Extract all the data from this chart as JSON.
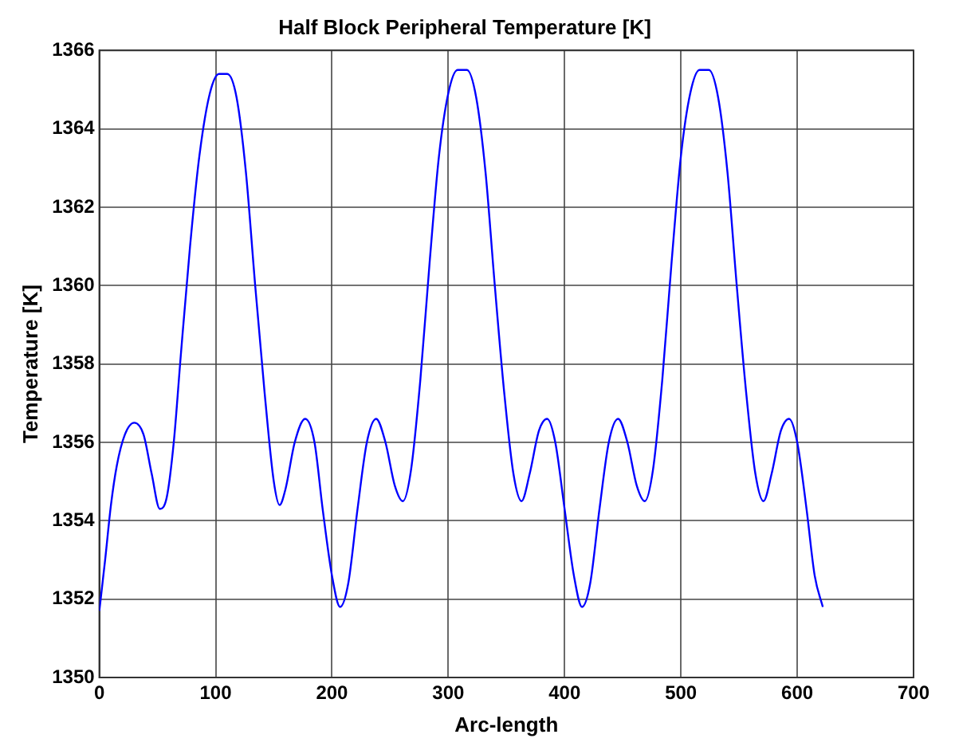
{
  "chart_data": {
    "type": "line",
    "title": "Half Block Peripheral Temperature [K]",
    "xlabel": "Arc-length",
    "ylabel": "Temperature [K]",
    "series": [
      {
        "color": "#0000ff",
        "x": [
          0,
          5,
          10,
          15,
          22,
          30,
          38,
          45,
          52,
          58,
          64,
          70,
          78,
          86,
          95,
          103,
          110,
          118,
          126,
          134,
          142,
          150,
          155,
          160,
          168,
          177,
          185,
          192,
          200,
          207,
          214,
          222,
          230,
          238,
          246,
          254,
          261,
          268,
          276,
          284,
          292,
          300,
          308,
          316,
          324,
          332,
          340,
          348,
          356,
          363,
          370,
          378,
          385,
          392,
          400,
          408,
          415,
          422,
          430,
          438,
          446,
          454,
          462,
          469,
          476,
          484,
          492,
          500,
          508,
          516,
          524,
          532,
          540,
          548,
          556,
          564,
          571,
          578,
          586,
          593,
          600,
          608,
          615,
          622
        ],
        "values": [
          1351.7,
          1353.0,
          1354.4,
          1355.4,
          1356.2,
          1356.5,
          1356.2,
          1355.2,
          1354.3,
          1354.6,
          1356.0,
          1358.2,
          1361.0,
          1363.3,
          1364.9,
          1365.4,
          1365.4,
          1364.8,
          1362.9,
          1360.0,
          1357.3,
          1355.0,
          1354.4,
          1354.8,
          1356.0,
          1356.6,
          1356.0,
          1354.3,
          1352.6,
          1351.8,
          1352.4,
          1354.3,
          1356.0,
          1356.6,
          1356.0,
          1354.9,
          1354.5,
          1355.3,
          1357.6,
          1360.6,
          1363.3,
          1364.9,
          1365.5,
          1365.5,
          1364.8,
          1362.9,
          1360.0,
          1357.3,
          1355.2,
          1354.5,
          1355.2,
          1356.3,
          1356.6,
          1356.0,
          1354.3,
          1352.6,
          1351.8,
          1352.4,
          1354.3,
          1356.0,
          1356.6,
          1356.0,
          1354.9,
          1354.5,
          1355.3,
          1357.6,
          1360.6,
          1363.3,
          1364.9,
          1365.5,
          1365.5,
          1364.8,
          1362.9,
          1360.0,
          1357.3,
          1355.2,
          1354.5,
          1355.2,
          1356.3,
          1356.6,
          1356.0,
          1354.3,
          1352.6,
          1351.8
        ]
      }
    ],
    "xlim": [
      0,
      700
    ],
    "xticks": [
      0,
      100,
      200,
      300,
      400,
      500,
      600,
      700
    ],
    "ylim": [
      1350,
      1366
    ],
    "yticks": [
      1350,
      1352,
      1354,
      1356,
      1358,
      1360,
      1362,
      1364,
      1366
    ],
    "grid": true,
    "marker": "none",
    "line_style": "solid",
    "legend": false
  }
}
